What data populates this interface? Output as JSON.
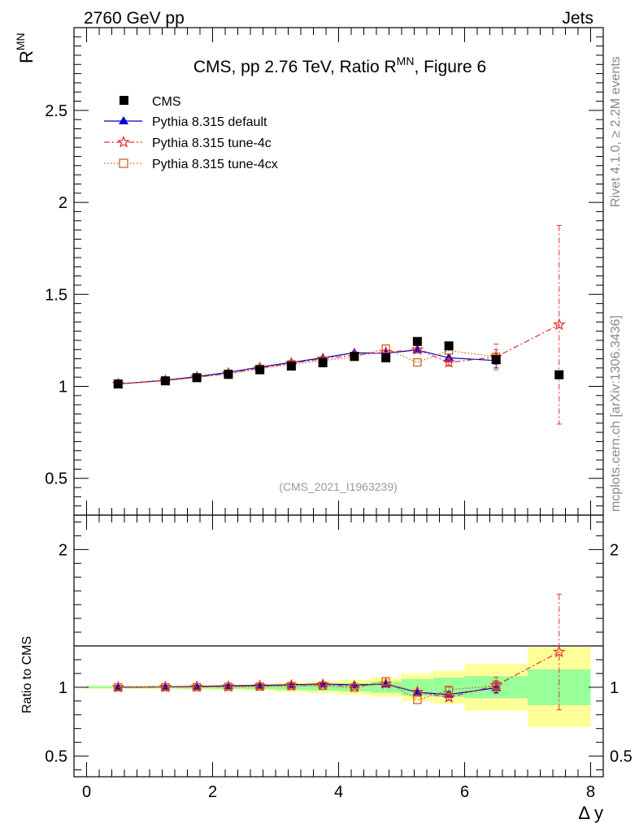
{
  "header": {
    "energy": "2760 GeV pp",
    "category": "Jets"
  },
  "side": {
    "rivet": "Rivet 4.1.0, ≥ 2.2M events",
    "source": "mcplots.cern.ch [arXiv:1306.3436]"
  },
  "colors": {
    "cms": "#000000",
    "default": "#0000cc",
    "tune4c": "#e03030",
    "tune4cx": "#c85a10",
    "band_inner": "#99ff99",
    "band_outer": "#ffff99"
  },
  "chart_data": [
    {
      "type": "line",
      "panel": "main",
      "title_prefix": "CMS, pp 2.76 TeV, Ratio R",
      "title_sup": "MN",
      "title_suffix": ", Figure 6",
      "ylabel": "R",
      "ylabel_sup": "MN",
      "watermark": "(CMS_2021_I1963239)",
      "xlim": [
        -0.2,
        8.2
      ],
      "ylim": [
        0.3,
        2.95
      ],
      "yticks": [
        0.5,
        1,
        1.5,
        2,
        2.5
      ],
      "ytick_labels": [
        "0.5",
        "1",
        "1.5",
        "2",
        "2.5"
      ],
      "legend": [
        "CMS",
        "Pythia 8.315 default",
        "Pythia 8.315 tune-4c",
        "Pythia 8.315 tune-4cx"
      ],
      "bins": [
        [
          0,
          1
        ],
        [
          1,
          1.5
        ],
        [
          1.5,
          2
        ],
        [
          2,
          2.5
        ],
        [
          2.5,
          3
        ],
        [
          3,
          3.5
        ],
        [
          3.5,
          4
        ],
        [
          4,
          4.5
        ],
        [
          4.5,
          5
        ],
        [
          5,
          5.5
        ],
        [
          5.5,
          6
        ],
        [
          6,
          7
        ],
        [
          7,
          8
        ]
      ],
      "x": [
        0.5,
        1.25,
        1.75,
        2.25,
        2.75,
        3.25,
        3.75,
        4.25,
        4.75,
        5.25,
        5.75,
        6.5,
        7.5
      ],
      "cms": [
        1.013,
        1.03,
        1.047,
        1.065,
        1.09,
        1.11,
        1.128,
        1.163,
        1.155,
        1.244,
        1.22,
        1.145,
        1.063
      ],
      "series": [
        {
          "name": "Pythia 8.315 default",
          "values": [
            1.013,
            1.033,
            1.053,
            1.076,
            1.105,
            1.13,
            1.155,
            1.183,
            1.18,
            1.198,
            1.155,
            1.14,
            null
          ],
          "err": [
            0,
            0,
            0,
            0,
            0,
            0,
            0,
            0,
            0,
            0,
            0.02,
            0.04,
            0
          ]
        },
        {
          "name": "Pythia 8.315 tune-4c",
          "values": [
            1.013,
            1.032,
            1.05,
            1.07,
            1.1,
            1.125,
            1.15,
            1.17,
            1.185,
            1.2,
            1.13,
            1.16,
            1.335
          ],
          "err": [
            0,
            0,
            0,
            0,
            0,
            0,
            0,
            0,
            0,
            0,
            0.02,
            0.04,
            0.54
          ]
        },
        {
          "name": "Pythia 8.315 tune-4cx",
          "values": [
            1.012,
            1.03,
            1.048,
            1.068,
            1.095,
            1.12,
            1.14,
            1.16,
            1.205,
            1.13,
            1.195,
            1.16,
            null
          ],
          "err": [
            0,
            0,
            0,
            0,
            0,
            0,
            0,
            0,
            0,
            0,
            0.02,
            0.07,
            0
          ]
        }
      ]
    },
    {
      "type": "line",
      "panel": "ratio",
      "ylabel": "Ratio to CMS",
      "xlabel": "Δ y",
      "xlim": [
        -0.2,
        8.2
      ],
      "ylim": [
        0.35,
        2.25
      ],
      "xticks": [
        0,
        2,
        4,
        6,
        8
      ],
      "xtick_labels": [
        "0",
        "2",
        "4",
        "6",
        "8"
      ],
      "yticks": [
        0.5,
        1,
        2
      ],
      "ytick_labels": [
        "0.5",
        "1",
        "2"
      ],
      "band_inner": [
        0.008,
        0.008,
        0.01,
        0.012,
        0.015,
        0.02,
        0.025,
        0.03,
        0.04,
        0.06,
        0.07,
        0.08,
        0.13
      ],
      "band_outer": [
        0.012,
        0.014,
        0.016,
        0.02,
        0.025,
        0.035,
        0.045,
        0.055,
        0.07,
        0.1,
        0.12,
        0.17,
        0.29
      ],
      "series": [
        {
          "name": "Pythia 8.315 default",
          "values": [
            1.0,
            1.003,
            1.006,
            1.01,
            1.014,
            1.018,
            1.024,
            1.017,
            1.022,
            0.963,
            0.947,
            0.996,
            null
          ],
          "err": [
            0,
            0,
            0,
            0,
            0,
            0,
            0,
            0,
            0,
            0,
            0.02,
            0.035,
            0
          ]
        },
        {
          "name": "Pythia 8.315 tune-4c",
          "values": [
            1.0,
            1.002,
            1.003,
            1.005,
            1.009,
            1.013,
            1.019,
            1.006,
            1.026,
            0.965,
            0.926,
            1.013,
            1.256
          ],
          "err": [
            0,
            0,
            0,
            0,
            0,
            0,
            0,
            0,
            0,
            0,
            0.02,
            0.035,
            0.42
          ]
        },
        {
          "name": "Pythia 8.315 tune-4cx",
          "values": [
            0.999,
            1.0,
            1.001,
            1.003,
            1.005,
            1.009,
            1.011,
            0.997,
            1.043,
            0.908,
            0.98,
            1.013,
            null
          ],
          "err": [
            0,
            0,
            0,
            0,
            0,
            0,
            0,
            0,
            0,
            0,
            0.02,
            0.06,
            0
          ]
        }
      ]
    }
  ]
}
